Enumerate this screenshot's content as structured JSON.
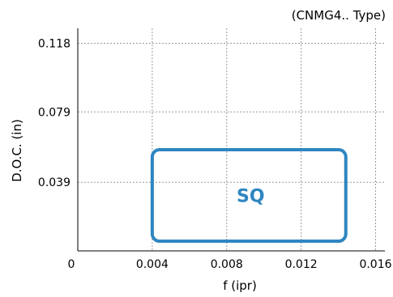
{
  "chart_data": {
    "type": "area",
    "title": "",
    "subtitle": "(CNMG4.. Type)",
    "xlabel": "f (ipr)",
    "ylabel": "D.O.C. (in)",
    "xlim": [
      0,
      0.0165
    ],
    "ylim": [
      0,
      0.1265
    ],
    "x_ticks": [
      0.004,
      0.008,
      0.012,
      0.016
    ],
    "x_tick_labels": [
      "0.004",
      "0.008",
      "0.012",
      "0.016"
    ],
    "y_ticks": [
      0.039,
      0.079,
      0.118
    ],
    "y_tick_labels": [
      "0.039",
      "0.079",
      "0.118"
    ],
    "origin_label": "0",
    "grid": true,
    "regions": [
      {
        "name": "SQ",
        "color": "#2e86c1",
        "x_min": 0.004,
        "x_max": 0.0144,
        "y_min": 0.0055,
        "y_max": 0.0575
      }
    ]
  }
}
